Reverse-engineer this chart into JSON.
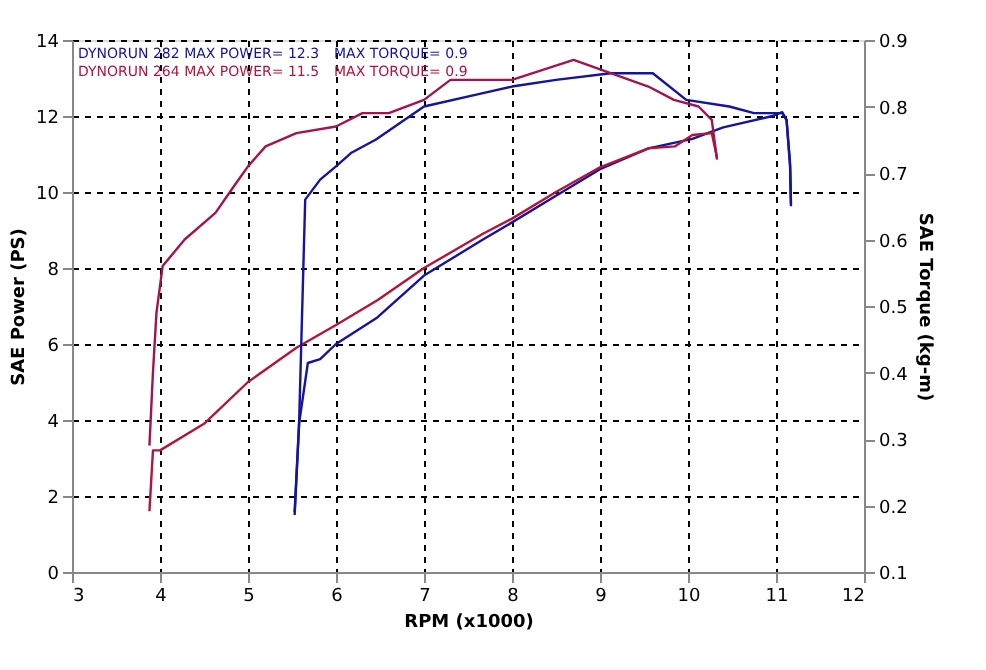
{
  "chart_data": {
    "type": "line",
    "xlabel": "RPM (x1000)",
    "ylabel": "SAE Power (PS)",
    "y2label": "SAE Torque (kg-m)",
    "xlim": [
      3,
      12
    ],
    "xticks": [
      3,
      4,
      5,
      6,
      7,
      8,
      9,
      10,
      11,
      12
    ],
    "ylim": [
      0,
      14
    ],
    "yticks": [
      0,
      2,
      4,
      6,
      8,
      10,
      12,
      14
    ],
    "y2lim": [
      0.1,
      0.9
    ],
    "y2ticks": [
      0.1,
      0.2,
      0.3,
      0.4,
      0.5,
      0.6,
      0.7,
      0.8,
      0.9
    ],
    "grid": true,
    "marker": "none",
    "line_style": "solid",
    "annotations": [
      "DYNORUN 282  MAX POWER= 12.3",
      "DYNORUN 264  MAX POWER= 11.5",
      "MAX TORQUE= 0.9",
      "MAX TORQUE= 0.9"
    ],
    "series": [
      {
        "color": "#1414a0",
        "x": [
          5.53,
          5.58,
          5.68,
          5.82,
          6.0,
          6.47,
          7.0,
          7.67,
          8.0,
          8.5,
          9.0,
          9.55,
          10.05,
          10.4,
          10.96,
          11.07,
          11.12,
          11.16,
          11.17
        ],
        "values": [
          1.5,
          3.9,
          5.5,
          5.6,
          6.0,
          6.7,
          7.8,
          8.75,
          9.2,
          9.9,
          10.6,
          11.15,
          11.4,
          11.7,
          12.0,
          12.1,
          11.9,
          10.75,
          9.7
        ]
      },
      {
        "color": "#b4143c",
        "x": [
          3.88,
          3.92,
          4.0,
          4.5,
          5.0,
          5.55,
          6.0,
          6.47,
          7.0,
          7.67,
          8.0,
          8.5,
          9.0,
          9.55,
          9.85,
          10.05,
          10.27,
          10.33
        ],
        "values": [
          1.6,
          3.2,
          3.2,
          3.9,
          5.0,
          5.9,
          6.5,
          7.15,
          8.0,
          8.9,
          9.3,
          10.0,
          10.65,
          11.15,
          11.2,
          11.5,
          11.55,
          10.9
        ]
      },
      {
        "color": "#1414a0",
        "axis": "y2",
        "x": [
          5.53,
          5.58,
          5.65,
          5.82,
          6.0,
          6.17,
          6.45,
          7.0,
          7.67,
          8.0,
          8.5,
          9.12,
          9.6,
          9.98,
          10.47,
          10.75,
          11.0,
          11.07,
          11.12,
          11.16,
          11.17
        ],
        "values": [
          0.19,
          0.32,
          0.66,
          0.69,
          0.71,
          0.73,
          0.75,
          0.8,
          0.82,
          0.83,
          0.84,
          0.85,
          0.85,
          0.81,
          0.8,
          0.79,
          0.79,
          0.79,
          0.78,
          0.71,
          0.65
        ]
      },
      {
        "color": "#a01450",
        "axis": "y2",
        "x": [
          3.88,
          3.92,
          3.96,
          4.03,
          4.28,
          4.63,
          4.84,
          5.0,
          5.2,
          5.55,
          6.0,
          6.3,
          6.6,
          7.0,
          7.3,
          8.0,
          8.7,
          9.55,
          9.84,
          10.12,
          10.27,
          10.33
        ],
        "values": [
          0.29,
          0.4,
          0.49,
          0.56,
          0.6,
          0.64,
          0.68,
          0.71,
          0.74,
          0.76,
          0.77,
          0.79,
          0.79,
          0.81,
          0.84,
          0.84,
          0.87,
          0.83,
          0.81,
          0.8,
          0.78,
          0.72
        ]
      }
    ]
  }
}
